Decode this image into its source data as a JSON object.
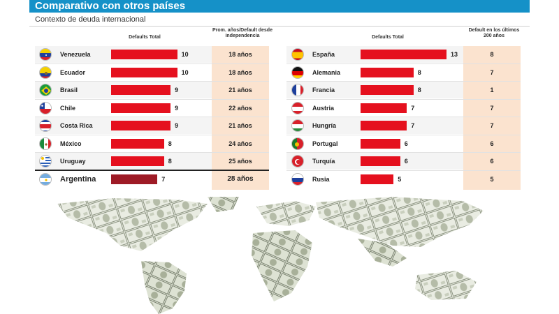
{
  "title": "Comparativo con otros países",
  "subtitle": "Contexto de deuda internacional",
  "left_table": {
    "header_bar": "Defaults Total",
    "header_extra": "Prom. años/Default desde independencia",
    "rows": [
      {
        "country": "Venezuela",
        "defaults": "10",
        "extra": "18 años",
        "flag": "venezuela-flag-icon"
      },
      {
        "country": "Ecuador",
        "defaults": "10",
        "extra": "18 años",
        "flag": "ecuador-flag-icon"
      },
      {
        "country": "Brasil",
        "defaults": "9",
        "extra": "21 años",
        "flag": "brazil-flag-icon"
      },
      {
        "country": "Chile",
        "defaults": "9",
        "extra": "22 años",
        "flag": "chile-flag-icon"
      },
      {
        "country": "Costa Rica",
        "defaults": "9",
        "extra": "21 años",
        "flag": "costa-rica-flag-icon"
      },
      {
        "country": "México",
        "defaults": "8",
        "extra": "24 años",
        "flag": "mexico-flag-icon"
      },
      {
        "country": "Uruguay",
        "defaults": "8",
        "extra": "25 años",
        "flag": "uruguay-flag-icon"
      },
      {
        "country": "Argentina",
        "defaults": "7",
        "extra": "28 años",
        "flag": "argentina-flag-icon"
      }
    ]
  },
  "right_table": {
    "header_bar": "Defaults Total",
    "header_extra": "Default en los últimos 200 años",
    "rows": [
      {
        "country": "España",
        "defaults": "13",
        "extra": "8",
        "flag": "spain-flag-icon"
      },
      {
        "country": "Alemania",
        "defaults": "8",
        "extra": "7",
        "flag": "germany-flag-icon"
      },
      {
        "country": "Francia",
        "defaults": "8",
        "extra": "1",
        "flag": "france-flag-icon"
      },
      {
        "country": "Austria",
        "defaults": "7",
        "extra": "7",
        "flag": "austria-flag-icon"
      },
      {
        "country": "Hungría",
        "defaults": "7",
        "extra": "7",
        "flag": "hungary-flag-icon"
      },
      {
        "country": "Portugal",
        "defaults": "6",
        "extra": "6",
        "flag": "portugal-flag-icon"
      },
      {
        "country": "Turquía",
        "defaults": "6",
        "extra": "6",
        "flag": "turkey-flag-icon"
      },
      {
        "country": "Rusia",
        "defaults": "5",
        "extra": "5",
        "flag": "russia-flag-icon"
      }
    ]
  },
  "chart_data": [
    {
      "type": "bar",
      "title": "Comparativo con otros países",
      "subtitle": "Contexto de deuda internacional",
      "categories": [
        "Venezuela",
        "Ecuador",
        "Brasil",
        "Chile",
        "Costa Rica",
        "México",
        "Uruguay",
        "Argentina"
      ],
      "series": [
        {
          "name": "Defaults Total",
          "values": [
            10,
            10,
            9,
            9,
            9,
            8,
            8,
            7
          ]
        },
        {
          "name": "Prom. años/Default desde independencia",
          "values": [
            18,
            18,
            21,
            22,
            21,
            24,
            25,
            28
          ]
        }
      ],
      "highlight": "Argentina",
      "xlim": [
        0,
        13
      ]
    },
    {
      "type": "bar",
      "categories": [
        "España",
        "Alemania",
        "Francia",
        "Austria",
        "Hungría",
        "Portugal",
        "Turquía",
        "Rusia"
      ],
      "series": [
        {
          "name": "Defaults Total",
          "values": [
            13,
            8,
            8,
            7,
            7,
            6,
            6,
            5
          ]
        },
        {
          "name": "Default en los últimos 200 años",
          "values": [
            8,
            7,
            1,
            7,
            7,
            6,
            6,
            5
          ]
        }
      ],
      "xlim": [
        0,
        13
      ]
    }
  ],
  "colors": {
    "title_bar": "#1591c8",
    "bar": "#e5101e",
    "bar_highlight": "#9e1b26",
    "value_column": "#fbe3cf"
  }
}
